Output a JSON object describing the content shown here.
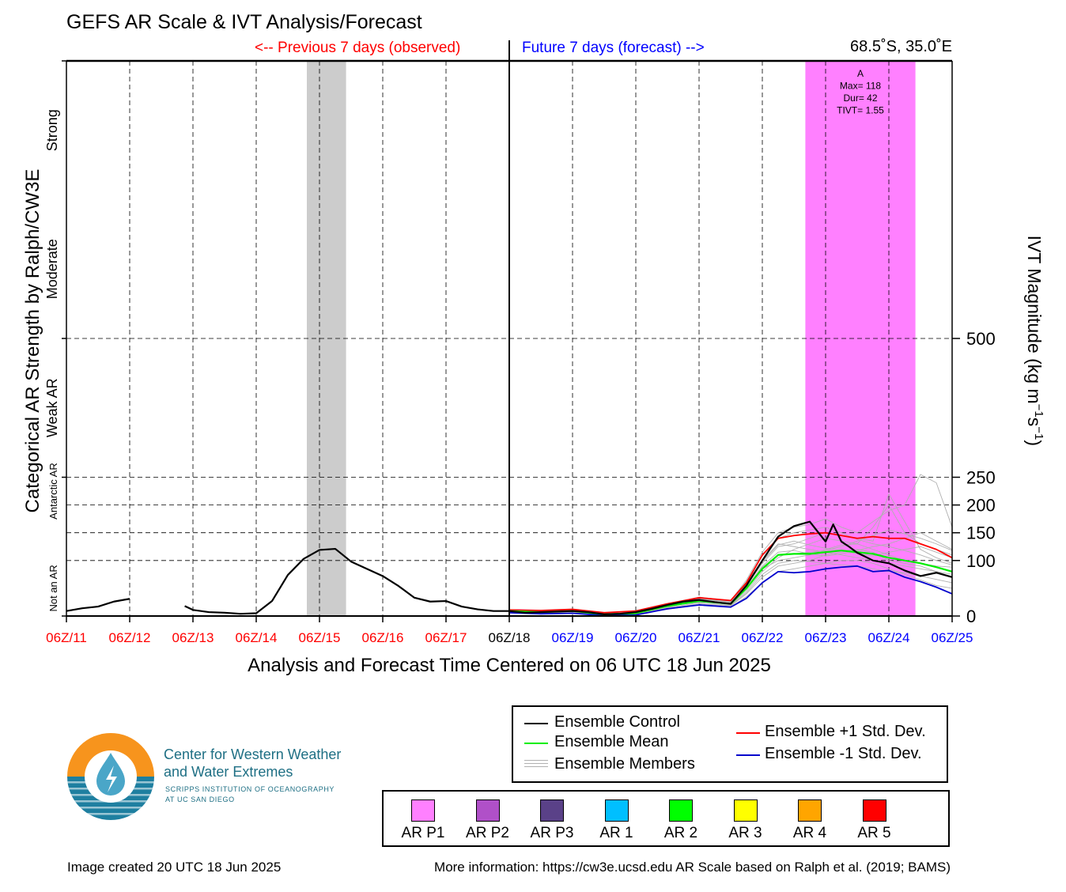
{
  "header": {
    "title": "GEFS AR Scale & IVT Analysis/Forecast",
    "prev_label": "<-- Previous 7 days (observed)",
    "future_label": "Future 7 days (forecast) -->",
    "location": "68.5˚S, 35.0˚E"
  },
  "footer": {
    "created": "Image created 20 UTC 18 Jun 2025",
    "info": "More information: https://cw3e.ucsd.edu AR Scale based on Ralph et al. (2019; BAMS)"
  },
  "logo": {
    "name_line1": "Center for Western Weather",
    "name_line2": "and Water Extremes",
    "sub_line1": "SCRIPPS INSTITUTION OF OCEANOGRAPHY",
    "sub_line2": "AT UC SAN DIEGO",
    "colors": {
      "orange": "#f7941d",
      "teal": "#1e7fa0",
      "light_blue": "#4aa6c8"
    },
    "icon": "water-drop-icon"
  },
  "legend_lines": [
    {
      "label": "Ensemble Control",
      "color": "#000000"
    },
    {
      "label": "Ensemble Mean",
      "color": "#00ee00"
    },
    {
      "label": "Ensemble Members",
      "color": "#b0b0b0"
    },
    {
      "label": "Ensemble +1 Std. Dev.",
      "color": "#ff0000"
    },
    {
      "label": "Ensemble -1 Std. Dev.",
      "color": "#0000cc"
    }
  ],
  "legend_categories": [
    {
      "label": "AR P1",
      "color": "#ff80ff"
    },
    {
      "label": "AR P2",
      "color": "#b050c8"
    },
    {
      "label": "AR P3",
      "color": "#5a4188"
    },
    {
      "label": "AR 1",
      "color": "#00bfff"
    },
    {
      "label": "AR 2",
      "color": "#00ff00"
    },
    {
      "label": "AR 3",
      "color": "#ffff00"
    },
    {
      "label": "AR 4",
      "color": "#ffa500"
    },
    {
      "label": "AR 5",
      "color": "#ff0000"
    }
  ],
  "chart_data": {
    "type": "line",
    "title": "GEFS AR Scale & IVT Analysis/Forecast",
    "xlabel": "Analysis and Forecast Time Centered on 06 UTC 18 Jun 2025",
    "ylabel_left": "Categorical AR Strength by Ralph/CW3E",
    "ylabel_right_base": "IVT Magnitude (kg m",
    "ylabel_right_exp1": "−1",
    "ylabel_right_mid": "s",
    "ylabel_right_exp2": "−1",
    "ylabel_right_end": ")",
    "xlim": [
      0,
      14
    ],
    "ylim": [
      0,
      1000
    ],
    "x_unit_note": "days since 06Z/11 Jun 2025",
    "x_ticks": [
      {
        "label": "06Z/11",
        "color": "#ff0000"
      },
      {
        "label": "06Z/12",
        "color": "#ff0000"
      },
      {
        "label": "06Z/13",
        "color": "#ff0000"
      },
      {
        "label": "06Z/14",
        "color": "#ff0000"
      },
      {
        "label": "06Z/15",
        "color": "#ff0000"
      },
      {
        "label": "06Z/16",
        "color": "#ff0000"
      },
      {
        "label": "06Z/17",
        "color": "#ff0000"
      },
      {
        "label": "06Z/18",
        "color": "#000000"
      },
      {
        "label": "06Z/19",
        "color": "#0000ff"
      },
      {
        "label": "06Z/20",
        "color": "#0000ff"
      },
      {
        "label": "06Z/21",
        "color": "#0000ff"
      },
      {
        "label": "06Z/22",
        "color": "#0000ff"
      },
      {
        "label": "06Z/23",
        "color": "#0000ff"
      },
      {
        "label": "06Z/24",
        "color": "#0000ff"
      },
      {
        "label": "06Z/25",
        "color": "#0000ff"
      }
    ],
    "y_ticks_right": [
      {
        "value": 0,
        "label": "0"
      },
      {
        "value": 100,
        "label": "100"
      },
      {
        "value": 150,
        "label": "150"
      },
      {
        "value": 200,
        "label": "200"
      },
      {
        "value": 250,
        "label": "250"
      },
      {
        "value": 500,
        "label": "500"
      }
    ],
    "category_labels": [
      {
        "label": "Not an AR",
        "y": 50,
        "small": true
      },
      {
        "label": "Antarctic AR",
        "y": 225,
        "small": true
      },
      {
        "label": "Weak AR",
        "y": 375,
        "small": false
      },
      {
        "label": "Moderate",
        "y": 625,
        "small": false
      },
      {
        "label": "Strong",
        "y": 875,
        "small": false
      }
    ],
    "gray_band": {
      "x0": 3.8,
      "x1": 4.42,
      "color": "#cccccc"
    },
    "ar_events": [
      {
        "x0": 11.68,
        "x1": 13.42,
        "color": "#ff80ff",
        "label": "A",
        "max": "Max= 118",
        "dur": "Dur= 42",
        "tivt": "TIVT= 1.55"
      }
    ],
    "divider_x": 7,
    "series": [
      {
        "name": "Ensemble Control (observed, part 1)",
        "color": "#000000",
        "width": 2.2,
        "x": [
          0,
          0.25,
          0.5,
          0.75,
          1.0
        ],
        "y": [
          9,
          14,
          17,
          26,
          31
        ]
      },
      {
        "name": "Ensemble Control (observed, part 2)",
        "color": "#000000",
        "width": 2.2,
        "x": [
          1.87,
          2.0,
          2.25,
          2.5,
          2.75,
          3.0,
          3.25,
          3.5,
          3.75,
          4.0,
          4.25,
          4.5,
          4.75,
          5.0,
          5.25,
          5.5,
          5.75,
          6.0,
          6.25,
          6.5,
          6.75,
          7.0
        ],
        "y": [
          18,
          11,
          7,
          6,
          4,
          5,
          27,
          74,
          103,
          119,
          121,
          98,
          85,
          72,
          54,
          33,
          26,
          27,
          17,
          12,
          9,
          9
        ]
      },
      {
        "name": "Ensemble Control",
        "color": "#000000",
        "width": 2.2,
        "x": [
          7.0,
          7.25,
          7.5,
          7.75,
          8.0,
          8.25,
          8.5,
          8.75,
          9.0,
          9.25,
          9.5,
          9.75,
          10.0,
          10.25,
          10.5,
          10.75,
          11.0,
          11.25,
          11.5,
          11.75,
          12.0,
          12.12,
          12.25,
          12.37,
          12.5,
          12.75,
          13.0,
          13.25,
          13.5,
          13.75,
          14.0
        ],
        "y": [
          9,
          6,
          7,
          8,
          9,
          7,
          3,
          4,
          7,
          13,
          20,
          26,
          29,
          25,
          22,
          55,
          100,
          143,
          162,
          170,
          134,
          165,
          134,
          125,
          114,
          100,
          95,
          82,
          72,
          78,
          70
        ]
      },
      {
        "name": "Ensemble Mean",
        "color": "#00ee00",
        "width": 2.2,
        "x": [
          7.0,
          7.5,
          8.0,
          8.5,
          9.0,
          9.5,
          10.0,
          10.5,
          10.75,
          11.0,
          11.25,
          11.5,
          11.75,
          12.0,
          12.25,
          12.5,
          12.75,
          13.0,
          13.25,
          13.5,
          13.75,
          14.0
        ],
        "y": [
          9,
          7,
          9,
          3,
          5,
          18,
          27,
          22,
          50,
          85,
          110,
          112,
          112,
          115,
          118,
          115,
          112,
          105,
          100,
          95,
          88,
          80
        ]
      },
      {
        "name": "Ensemble +1 Std. Dev.",
        "color": "#ff0000",
        "width": 1.8,
        "x": [
          7.0,
          7.5,
          8.0,
          8.5,
          9.0,
          9.5,
          10.0,
          10.5,
          10.75,
          11.0,
          11.25,
          11.5,
          11.75,
          12.0,
          12.25,
          12.5,
          12.75,
          13.0,
          13.25,
          13.5,
          13.75,
          14.0
        ],
        "y": [
          11,
          10,
          12,
          6,
          9,
          22,
          33,
          28,
          60,
          110,
          140,
          145,
          148,
          150,
          145,
          140,
          143,
          140,
          140,
          130,
          120,
          105
        ]
      },
      {
        "name": "Ensemble -1 Std. Dev.",
        "color": "#0000cc",
        "width": 1.8,
        "x": [
          7.0,
          7.5,
          8.0,
          8.5,
          9.0,
          9.5,
          10.0,
          10.5,
          10.75,
          11.0,
          11.25,
          11.5,
          11.75,
          12.0,
          12.25,
          12.5,
          12.75,
          13.0,
          13.25,
          13.5,
          13.75,
          14.0
        ],
        "y": [
          6,
          4,
          5,
          1,
          2,
          13,
          20,
          16,
          32,
          60,
          80,
          78,
          80,
          85,
          88,
          90,
          80,
          82,
          70,
          62,
          52,
          40
        ]
      }
    ],
    "members": {
      "color": "#b0b0b0",
      "x": [
        7.0,
        7.5,
        8.0,
        8.5,
        9.0,
        9.5,
        10.0,
        10.5,
        10.75,
        11.0,
        11.25,
        11.5,
        11.75,
        12.0,
        12.25,
        12.5,
        12.75,
        13.0,
        13.25,
        13.5,
        13.75,
        14.0
      ],
      "y": [
        [
          10,
          8,
          12,
          4,
          7,
          22,
          34,
          28,
          65,
          115,
          150,
          160,
          165,
          175,
          160,
          150,
          170,
          190,
          200,
          255,
          240,
          160
        ],
        [
          8,
          6,
          10,
          3,
          4,
          16,
          28,
          20,
          45,
          80,
          105,
          120,
          130,
          140,
          135,
          130,
          160,
          200,
          150,
          130,
          120,
          110
        ],
        [
          9,
          7,
          9,
          2,
          6,
          18,
          25,
          24,
          55,
          95,
          125,
          130,
          140,
          150,
          145,
          140,
          135,
          220,
          170,
          120,
          105,
          95
        ],
        [
          7,
          5,
          8,
          3,
          5,
          14,
          22,
          18,
          40,
          70,
          90,
          95,
          100,
          110,
          115,
          120,
          115,
          100,
          95,
          90,
          80,
          70
        ],
        [
          10,
          9,
          11,
          5,
          8,
          20,
          30,
          26,
          60,
          100,
          130,
          125,
          120,
          115,
          110,
          105,
          100,
          95,
          90,
          85,
          80,
          75
        ],
        [
          8,
          6,
          7,
          2,
          3,
          12,
          20,
          16,
          35,
          60,
          80,
          85,
          90,
          95,
          100,
          100,
          95,
          85,
          75,
          65,
          55,
          50
        ],
        [
          9,
          8,
          10,
          4,
          6,
          19,
          29,
          25,
          52,
          90,
          115,
          118,
          112,
          108,
          112,
          118,
          125,
          130,
          140,
          150,
          135,
          120
        ],
        [
          7,
          6,
          9,
          3,
          5,
          17,
          26,
          21,
          48,
          85,
          100,
          105,
          110,
          120,
          128,
          130,
          120,
          110,
          100,
          95,
          90,
          88
        ],
        [
          11,
          9,
          12,
          5,
          7,
          21,
          31,
          27,
          58,
          98,
          128,
          135,
          128,
          122,
          118,
          112,
          108,
          115,
          120,
          125,
          115,
          105
        ],
        [
          8,
          7,
          9,
          2,
          4,
          15,
          24,
          19,
          42,
          75,
          95,
          100,
          98,
          95,
          92,
          90,
          85,
          80,
          78,
          72,
          66,
          60
        ],
        [
          9,
          8,
          11,
          4,
          7,
          20,
          32,
          26,
          62,
          108,
          140,
          150,
          155,
          160,
          150,
          138,
          130,
          125,
          118,
          110,
          100,
          92
        ],
        [
          10,
          7,
          10,
          3,
          6,
          18,
          27,
          22,
          50,
          88,
          110,
          112,
          115,
          118,
          125,
          135,
          145,
          155,
          148,
          140,
          130,
          118
        ]
      ]
    }
  }
}
